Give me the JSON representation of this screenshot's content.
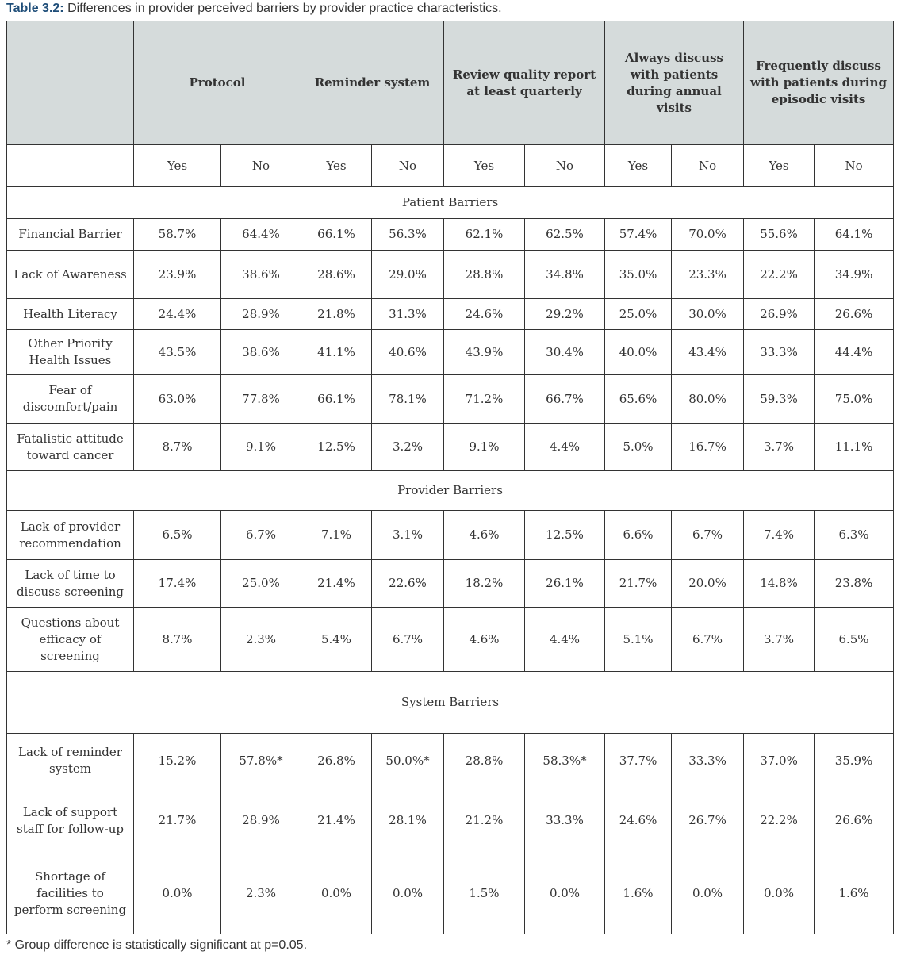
{
  "caption": {
    "label": "Table 3.2:",
    "text": " Differences in provider perceived barriers by provider practice characteristics."
  },
  "header": {
    "groups": [
      "Protocol",
      "Reminder system",
      "Review quality report at least quarterly",
      "Always discuss with patients during annual visits",
      "Frequently discuss with patients during episodic visits"
    ],
    "sub": [
      "Yes",
      "No",
      "Yes",
      "No",
      "Yes",
      "No",
      "Yes",
      "No",
      "Yes",
      "No"
    ]
  },
  "sections": [
    {
      "title": "Patient Barriers",
      "rows": [
        {
          "label": "Financial Barrier",
          "values": [
            "58.7%",
            "64.4%",
            "66.1%",
            "56.3%",
            "62.1%",
            "62.5%",
            "57.4%",
            "70.0%",
            "55.6%",
            "64.1%"
          ]
        },
        {
          "label": "Lack of Awareness",
          "values": [
            "23.9%",
            "38.6%",
            "28.6%",
            "29.0%",
            "28.8%",
            "34.8%",
            "35.0%",
            "23.3%",
            "22.2%",
            "34.9%"
          ]
        },
        {
          "label": "Health Literacy",
          "values": [
            "24.4%",
            "28.9%",
            "21.8%",
            "31.3%",
            "24.6%",
            "29.2%",
            "25.0%",
            "30.0%",
            "26.9%",
            "26.6%"
          ]
        },
        {
          "label": "Other Priority Health Issues",
          "values": [
            "43.5%",
            "38.6%",
            "41.1%",
            "40.6%",
            "43.9%",
            "30.4%",
            "40.0%",
            "43.4%",
            "33.3%",
            "44.4%"
          ]
        },
        {
          "label": "Fear of discomfort/pain",
          "values": [
            "63.0%",
            "77.8%",
            "66.1%",
            "78.1%",
            "71.2%",
            "66.7%",
            "65.6%",
            "80.0%",
            "59.3%",
            "75.0%"
          ]
        },
        {
          "label": "Fatalistic attitude toward cancer",
          "values": [
            "8.7%",
            "9.1%",
            "12.5%",
            "3.2%",
            "9.1%",
            "4.4%",
            "5.0%",
            "16.7%",
            "3.7%",
            "11.1%"
          ]
        }
      ]
    },
    {
      "title": "Provider Barriers",
      "rows": [
        {
          "label": "Lack of provider recommendation",
          "values": [
            "6.5%",
            "6.7%",
            "7.1%",
            "3.1%",
            "4.6%",
            "12.5%",
            "6.6%",
            "6.7%",
            "7.4%",
            "6.3%"
          ]
        },
        {
          "label": "Lack of time to discuss screening",
          "values": [
            "17.4%",
            "25.0%",
            "21.4%",
            "22.6%",
            "18.2%",
            "26.1%",
            "21.7%",
            "20.0%",
            "14.8%",
            "23.8%"
          ]
        },
        {
          "label": "Questions about efficacy of screening",
          "values": [
            "8.7%",
            "2.3%",
            "5.4%",
            "6.7%",
            "4.6%",
            "4.4%",
            "5.1%",
            "6.7%",
            "3.7%",
            "6.5%"
          ]
        }
      ]
    },
    {
      "title": "System Barriers",
      "rows": [
        {
          "label": "Lack of reminder system",
          "values": [
            "15.2%",
            "57.8%*",
            "26.8%",
            "50.0%*",
            "28.8%",
            "58.3%*",
            "37.7%",
            "33.3%",
            "37.0%",
            "35.9%"
          ]
        },
        {
          "label": "Lack of support staff for follow-up",
          "values": [
            "21.7%",
            "28.9%",
            "21.4%",
            "28.1%",
            "21.2%",
            "33.3%",
            "24.6%",
            "26.7%",
            "22.2%",
            "26.6%"
          ]
        },
        {
          "label": "Shortage of facilities to perform screening",
          "values": [
            "0.0%",
            "2.3%",
            "0.0%",
            "0.0%",
            "1.5%",
            "0.0%",
            "1.6%",
            "0.0%",
            "0.0%",
            "1.6%"
          ]
        }
      ]
    }
  ],
  "footnote": "* Group difference is statistically significant at p=0.05."
}
